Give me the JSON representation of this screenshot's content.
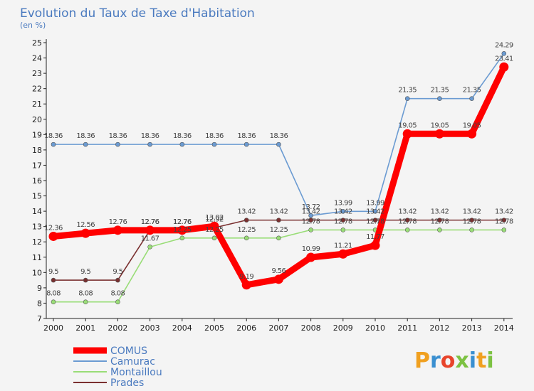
{
  "chart_data": {
    "type": "line",
    "title": "Evolution du Taux de Taxe d'Habitation",
    "ylabel": "(en %)",
    "xlabel": "",
    "x": [
      "2000",
      "2001",
      "2002",
      "2003",
      "2004",
      "2005",
      "2006",
      "2007",
      "2008",
      "2009",
      "2010",
      "2011",
      "2012",
      "2013",
      "2014"
    ],
    "ylim": [
      7,
      25
    ],
    "yticks": [
      "7",
      "8",
      "9",
      "10",
      "11",
      "12",
      "13",
      "14",
      "15",
      "16",
      "17",
      "18",
      "19",
      "20",
      "21",
      "22",
      "23",
      "24",
      "25"
    ],
    "grid": false,
    "legend_position": "bottom-left",
    "series": [
      {
        "name": "COMUS",
        "color": "#ff0000",
        "values": [
          12.36,
          12.56,
          12.76,
          12.76,
          12.76,
          13.02,
          9.19,
          9.56,
          10.99,
          11.21,
          11.77,
          19.05,
          19.05,
          19.05,
          23.41
        ],
        "labels": [
          "12.36",
          "12.56",
          "12.76",
          "12.76",
          "12.76",
          "13.02",
          "9.19",
          "9.56",
          "10.99",
          "11.21",
          "11.77",
          "19.05",
          "19.05",
          "19.05",
          "23.41"
        ]
      },
      {
        "name": "Camurac",
        "color": "#6b9bd2",
        "values": [
          18.36,
          18.36,
          18.36,
          18.36,
          18.36,
          18.36,
          18.36,
          18.36,
          13.72,
          13.99,
          13.99,
          21.35,
          21.35,
          21.35,
          24.29
        ],
        "labels": [
          "18.36",
          "18.36",
          "18.36",
          "18.36",
          "18.36",
          "18.36",
          "18.36",
          "18.36",
          "13.72",
          "13.99",
          "13.99",
          "21.35",
          "21.35",
          "21.35",
          "24.29"
        ]
      },
      {
        "name": "Montaillou",
        "color": "#99dd77",
        "values": [
          8.08,
          8.08,
          8.08,
          11.67,
          12.25,
          12.25,
          12.25,
          12.25,
          12.78,
          12.78,
          12.78,
          12.78,
          12.78,
          12.78,
          12.78
        ],
        "labels": [
          "8.08",
          "8.08",
          "8.08",
          "11.67",
          "12.25",
          "12.25",
          "12.25",
          "12.25",
          "12.78",
          "12.78",
          "12.78",
          "12.78",
          "12.78",
          "12.78",
          "12.78"
        ]
      },
      {
        "name": "Prades",
        "color": "#7a3030",
        "values": [
          9.5,
          9.5,
          9.5,
          12.76,
          12.76,
          12.92,
          13.42,
          13.42,
          13.42,
          13.42,
          13.42,
          13.42,
          13.42,
          13.42,
          13.42
        ],
        "labels": [
          "9.5",
          "9.5",
          "9.5",
          "12.76",
          "12.76",
          "12.92",
          "13.42",
          "13.42",
          "13.42",
          "13.42",
          "13.42",
          "13.42",
          "13.42",
          "13.42",
          "13.42"
        ]
      }
    ]
  },
  "brand": {
    "text": "Proxiti",
    "letters": [
      "P",
      "r",
      "o",
      "x",
      "i",
      "t",
      "i"
    ],
    "colors": [
      "#f0a020",
      "#3a8fd0",
      "#e8452c",
      "#7cc242",
      "#3a8fd0",
      "#f0a020",
      "#7cc242"
    ]
  }
}
